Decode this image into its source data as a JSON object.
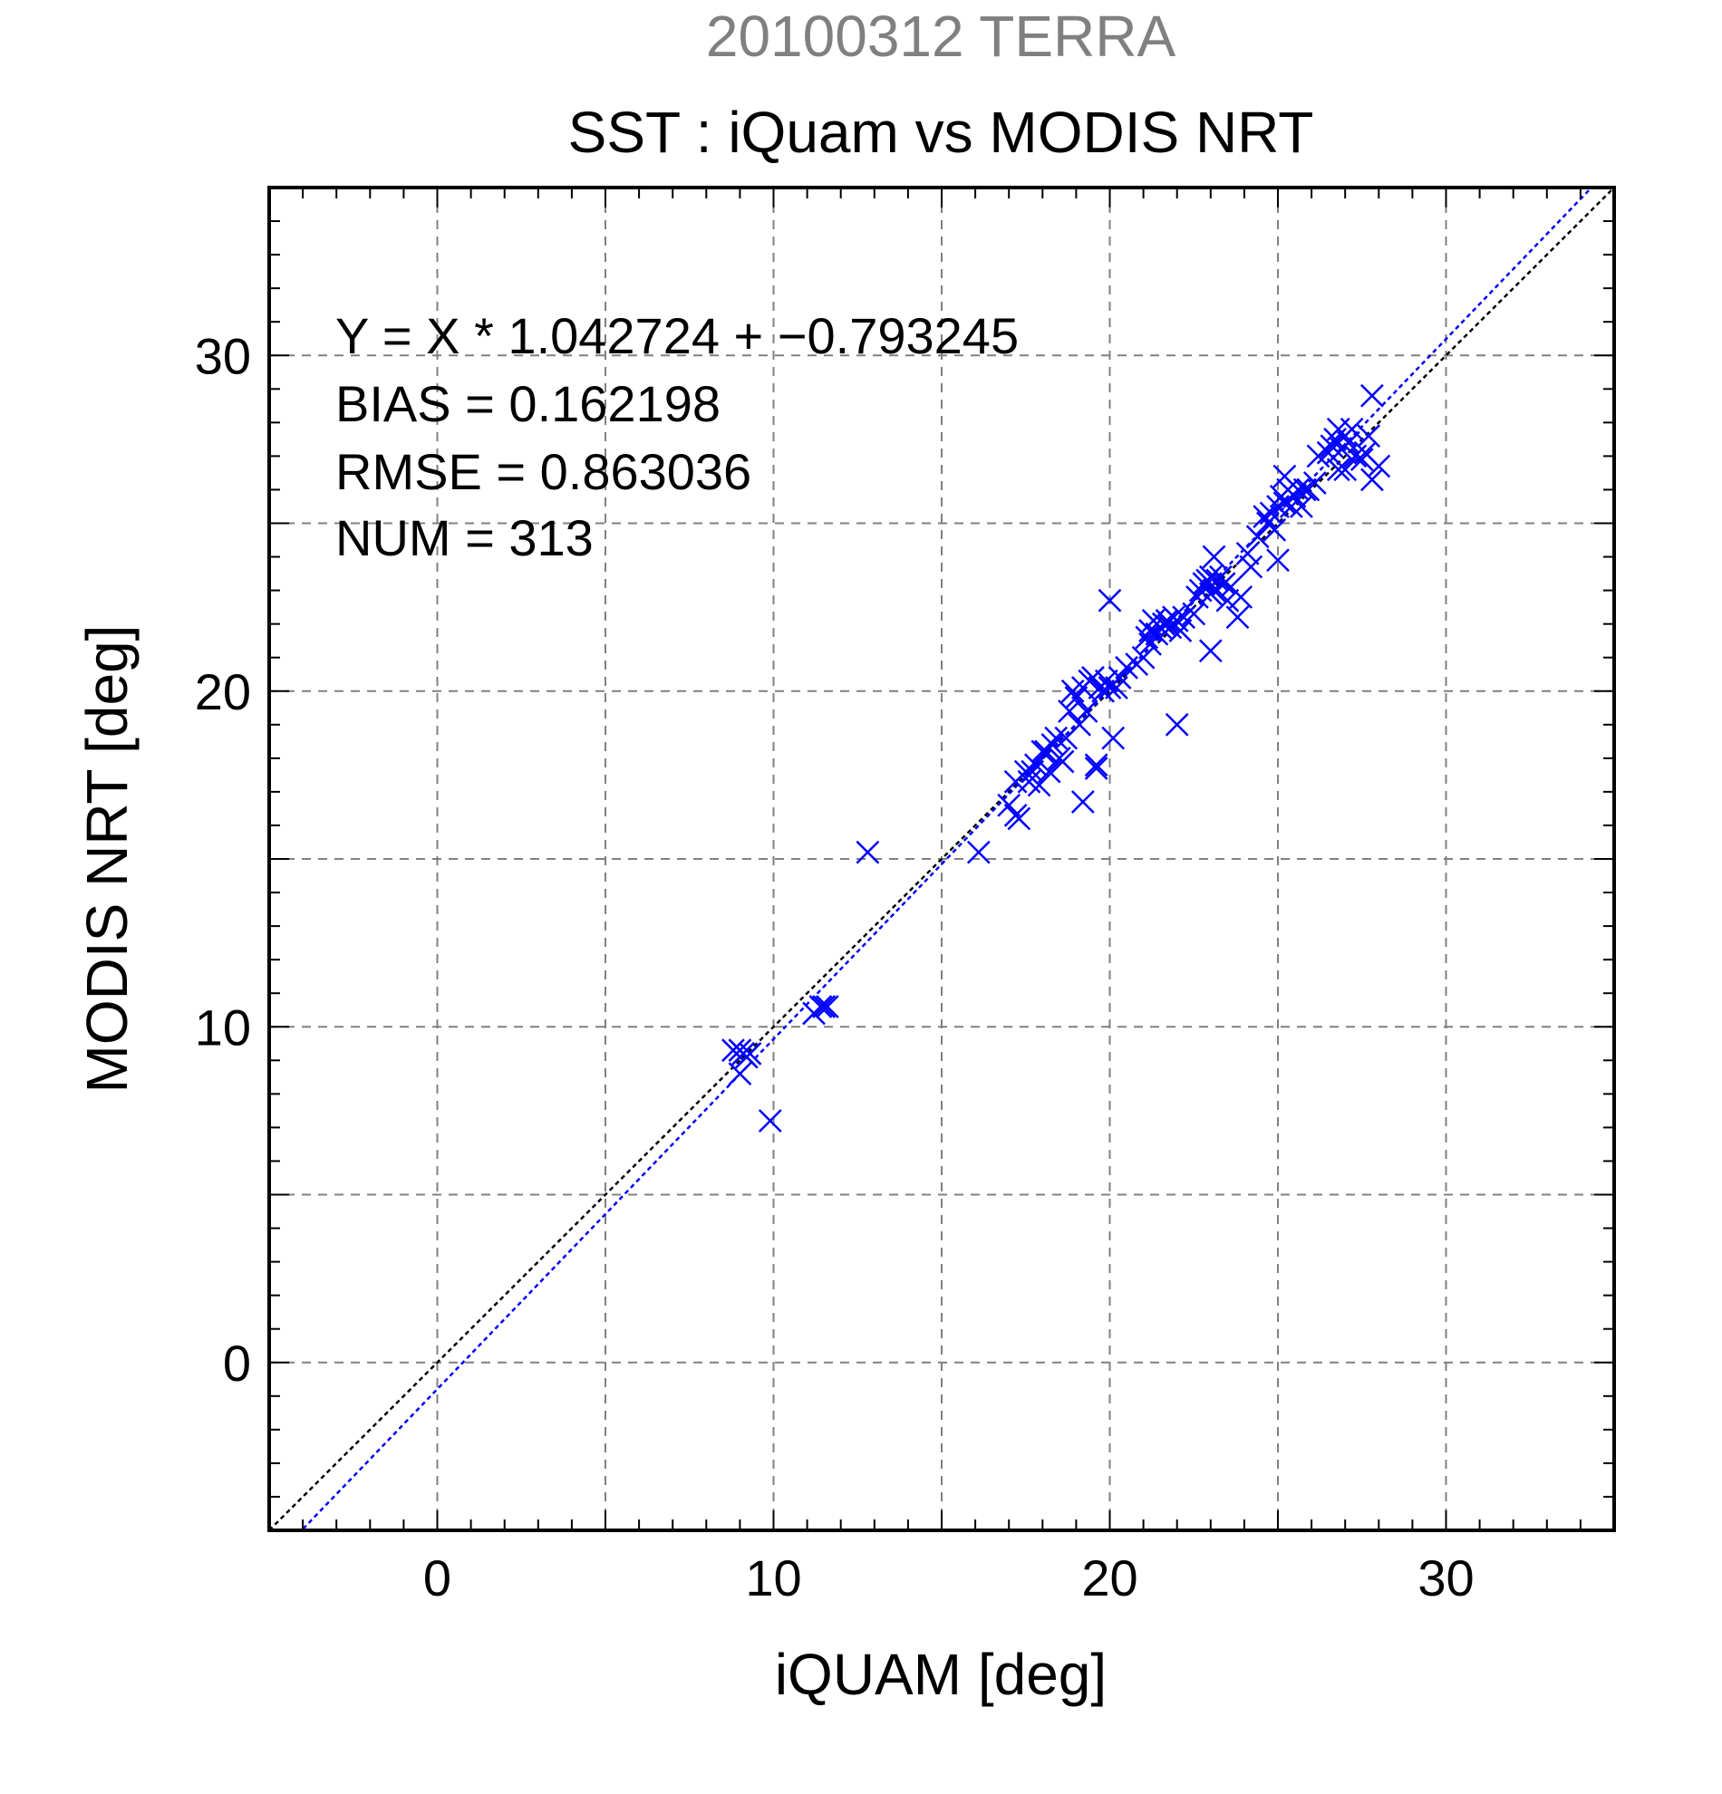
{
  "header": {
    "subtitle": "20100312 TERRA",
    "title": "SST : iQuam vs MODIS NRT"
  },
  "stats": {
    "equation": "Y = X * 1.042724 + −0.793245",
    "bias": "BIAS = 0.162198",
    "rmse": "RMSE = 0.863036",
    "num": "NUM = 313"
  },
  "colors": {
    "subtitle": "#808080",
    "markers": "#0000ff",
    "fit_line": "#0000ff",
    "identity_line": "#000000",
    "grid": "#808080"
  },
  "chart_data": {
    "type": "scatter",
    "title": "SST : iQuam vs MODIS NRT",
    "xlabel": "iQUAM [deg]",
    "ylabel": "MODIS NRT [deg]",
    "xlim": [
      -5,
      35
    ],
    "ylim": [
      -5,
      35
    ],
    "xticks": [
      0,
      10,
      20,
      30
    ],
    "yticks": [
      0,
      10,
      20,
      30
    ],
    "minor_step": 1,
    "grid": true,
    "grid_step": 5,
    "marker": "x",
    "fit": {
      "slope": 1.042724,
      "intercept": -0.793245
    },
    "identity_line": true,
    "series": [
      {
        "x": [
          8.8,
          9.0,
          9.1,
          9.2,
          9.3,
          9.0,
          9.1,
          9.9,
          11.2,
          11.4,
          11.5,
          11.6,
          12.8,
          16.1,
          17.0,
          17.2,
          17.2,
          17.3,
          17.5,
          17.6,
          17.7,
          17.8,
          17.9,
          18.0,
          18.1,
          18.2,
          18.3,
          18.4,
          18.5,
          18.6,
          18.7,
          18.8,
          18.9,
          19.0,
          19.1,
          19.2,
          19.2,
          19.3,
          19.4,
          19.5,
          19.6,
          19.6,
          19.7,
          19.8,
          19.9,
          20.0,
          20.0,
          20.1,
          20.2,
          20.3,
          20.5,
          20.8,
          21.0,
          21.1,
          21.2,
          21.2,
          21.3,
          21.4,
          21.5,
          21.6,
          21.7,
          21.8,
          21.9,
          22.0,
          22.1,
          22.2,
          22.0,
          22.5,
          22.6,
          22.7,
          22.8,
          22.9,
          23.0,
          23.0,
          23.1,
          23.2,
          23.3,
          23.4,
          23.5,
          23.6,
          23.8,
          23.9,
          23.0,
          23.1,
          24.1,
          24.2,
          24.4,
          24.6,
          24.7,
          24.8,
          24.9,
          25.0,
          25.0,
          25.1,
          25.2,
          25.3,
          25.4,
          25.5,
          25.6,
          25.7,
          25.8,
          25.2,
          25.9,
          26.1,
          26.2,
          26.5,
          26.6,
          26.7,
          26.8,
          26.9,
          27.0,
          27.1,
          27.2,
          27.0,
          26.8,
          27.3,
          27.5,
          27.7,
          27.8,
          28.0,
          27.8,
          27.6
        ],
        "y": [
          9.3,
          9.3,
          9.2,
          9.1,
          9.2,
          8.6,
          9.2,
          7.2,
          10.4,
          10.6,
          10.6,
          10.6,
          15.2,
          15.2,
          16.6,
          16.3,
          17.3,
          16.2,
          17.6,
          17.3,
          17.6,
          17.8,
          17.2,
          18.2,
          18.2,
          17.6,
          18.4,
          18.6,
          18.0,
          17.9,
          18.6,
          19.4,
          20.0,
          19.8,
          19.0,
          16.7,
          20.1,
          19.4,
          20.3,
          20.4,
          17.8,
          17.7,
          20.1,
          20.0,
          20.3,
          20.1,
          22.7,
          18.6,
          20.1,
          20.4,
          20.7,
          20.8,
          21.0,
          21.6,
          21.4,
          21.8,
          22.1,
          21.7,
          21.9,
          22.0,
          22.1,
          21.9,
          22.2,
          22.1,
          21.8,
          22.2,
          19.0,
          22.3,
          22.8,
          23.0,
          23.2,
          23.3,
          22.9,
          23.4,
          23.0,
          23.3,
          23.4,
          23.2,
          22.7,
          23.1,
          22.2,
          22.8,
          21.2,
          24.0,
          24.1,
          23.7,
          24.6,
          25.2,
          25.0,
          25.3,
          24.8,
          23.9,
          25.5,
          25.8,
          25.6,
          26.0,
          25.5,
          25.8,
          26.0,
          25.5,
          26.0,
          26.4,
          26.0,
          26.2,
          27.0,
          27.1,
          27.3,
          27.5,
          27.8,
          27.2,
          27.6,
          27.4,
          27.8,
          26.6,
          26.6,
          27.0,
          26.9,
          27.6,
          28.8,
          26.7,
          26.3,
          27.1
        ]
      }
    ]
  }
}
